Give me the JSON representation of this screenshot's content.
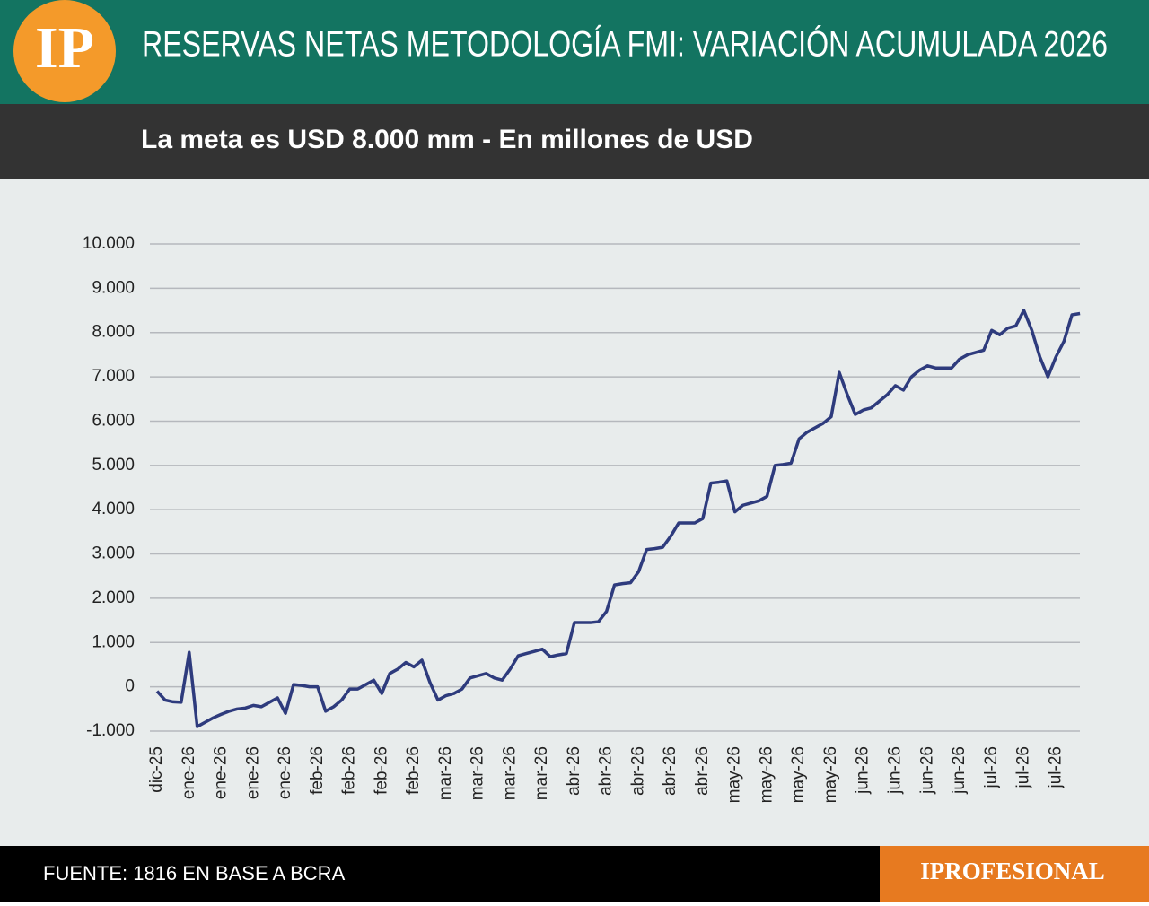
{
  "logo": "IP",
  "source": "FUENTE: 1816 EN BASE A BCRA",
  "brand": "IPROFESIONAL",
  "chart_data": {
    "type": "line",
    "title": "RESERVAS NETAS METODOLOGÍA FMI: VARIACIÓN ACUMULADA 2026",
    "subtitle": "La meta es USD 8.000 mm - En millones de USD",
    "categories": [
      "dic-25",
      null,
      null,
      null,
      "ene-26",
      null,
      null,
      null,
      "ene-26",
      null,
      null,
      null,
      "ene-26",
      null,
      null,
      null,
      "ene-26",
      null,
      null,
      null,
      "feb-26",
      null,
      null,
      null,
      "feb-26",
      null,
      null,
      null,
      "feb-26",
      null,
      null,
      null,
      "feb-26",
      null,
      null,
      null,
      "mar-26",
      null,
      null,
      null,
      "mar-26",
      null,
      null,
      null,
      "mar-26",
      null,
      null,
      null,
      "mar-26",
      null,
      null,
      null,
      "abr-26",
      null,
      null,
      null,
      "abr-26",
      null,
      null,
      null,
      "abr-26",
      null,
      null,
      null,
      "abr-26",
      null,
      null,
      null,
      "abr-26",
      null,
      null,
      null,
      "may-26",
      null,
      null,
      null,
      "may-26",
      null,
      null,
      null,
      "may-26",
      null,
      null,
      null,
      "may-26",
      null,
      null,
      null,
      "jun-26",
      null,
      null,
      null,
      "jun-26",
      null,
      null,
      null,
      "jun-26",
      null,
      null,
      null,
      "jun-26",
      null,
      null,
      null,
      "jul-26",
      null,
      null,
      null,
      "jul-26",
      null,
      null,
      null,
      "jul-26",
      null,
      null,
      null
    ],
    "series": [
      {
        "name": "Reservas netas",
        "color": "#2e3b7d",
        "values": [
          -100,
          -300,
          -340,
          -350,
          780,
          -900,
          -800,
          -700,
          -620,
          -550,
          -500,
          -480,
          -420,
          -450,
          -350,
          -250,
          -600,
          50,
          30,
          0,
          0,
          -550,
          -450,
          -300,
          -50,
          -50,
          50,
          150,
          -150,
          300,
          400,
          550,
          450,
          600,
          100,
          -300,
          -200,
          -150,
          -50,
          200,
          250,
          300,
          200,
          150,
          400,
          700,
          750,
          800,
          850,
          680,
          720,
          750,
          1450,
          1450,
          1450,
          1470,
          1700,
          2300,
          2330,
          2350,
          2600,
          3100,
          3120,
          3150,
          3400,
          3700,
          3700,
          3700,
          3800,
          4600,
          4620,
          4650,
          3950,
          4100,
          4150,
          4200,
          4300,
          5000,
          5020,
          5050,
          5600,
          5750,
          5850,
          5950,
          6100,
          7100,
          6600,
          6150,
          6250,
          6300,
          6450,
          6600,
          6800,
          6700,
          7000,
          7150,
          7250,
          7200,
          7200,
          7200,
          7400,
          7500,
          7550,
          7600,
          8050,
          7950,
          8100,
          8150,
          8500,
          8050,
          7450,
          7000,
          7450,
          7800,
          8400,
          8430
        ]
      }
    ],
    "ylim": [
      -1000,
      10000
    ],
    "yticks": [
      {
        "value": -1000,
        "label": "-1.000"
      },
      0,
      {
        "value": 1000,
        "label": "1.000"
      },
      {
        "value": 2000,
        "label": "2.000"
      },
      {
        "value": 3000,
        "label": "3.000"
      },
      {
        "value": 4000,
        "label": "4.000"
      },
      {
        "value": 5000,
        "label": "5.000"
      },
      {
        "value": 6000,
        "label": "6.000"
      },
      {
        "value": 7000,
        "label": "7.000"
      },
      {
        "value": 8000,
        "label": "8.000"
      },
      {
        "value": 9000,
        "label": "9.000"
      },
      {
        "value": 10000,
        "label": "10.000"
      }
    ],
    "grid": true
  }
}
